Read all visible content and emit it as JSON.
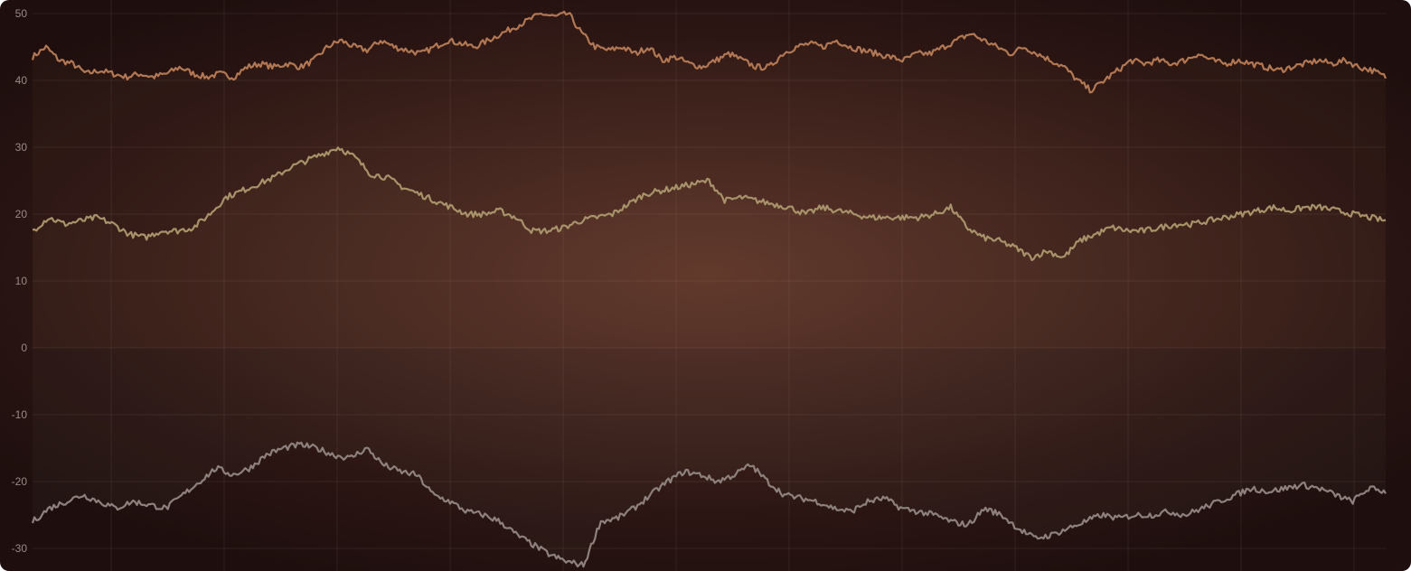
{
  "chart_data": {
    "type": "line",
    "ylim": [
      -33,
      50
    ],
    "y_ticks": [
      "50",
      "40",
      "30",
      "20",
      "10",
      "0",
      "-10",
      "-20",
      "-30"
    ],
    "grid": true,
    "x_gridlines": 12,
    "series": [
      {
        "color": "#b27753",
        "values": [
          43.5,
          45,
          43,
          42.5,
          41,
          41.5,
          41,
          40.5,
          41,
          40.5,
          41,
          42,
          41,
          40.5,
          41,
          40.5,
          42,
          42.5,
          42,
          42.5,
          42,
          43,
          45,
          46,
          45,
          44.5,
          46,
          45,
          44.5,
          44,
          45,
          46,
          45.5,
          45,
          46,
          47,
          48,
          49,
          50,
          49.5,
          50,
          47,
          45,
          44.5,
          45,
          44,
          45,
          43,
          43.5,
          42.5,
          42,
          43,
          44,
          43,
          42,
          42,
          44,
          45,
          45.5,
          45,
          46,
          45,
          44.5,
          44,
          43.5,
          43,
          44,
          44,
          45,
          46,
          47,
          46,
          45,
          44,
          45,
          44,
          43,
          42,
          40,
          38.5,
          40,
          41.5,
          43,
          42.5,
          43,
          42.5,
          43,
          44,
          43,
          42.5,
          43,
          42.5,
          42,
          41.5,
          42,
          42.5,
          43,
          42.5,
          43,
          42,
          41.5,
          40.5
        ]
      },
      {
        "color": "#a8926a",
        "values": [
          17.5,
          19.5,
          18.5,
          19,
          19.5,
          18.5,
          17,
          16.5,
          17.5,
          17.5,
          18,
          20,
          22.5,
          23.5,
          24.5,
          25.5,
          27,
          28,
          29,
          30,
          28.5,
          26,
          25.5,
          24,
          23,
          22,
          21,
          20,
          20,
          20.5,
          19.5,
          17.5,
          17.5,
          18,
          19,
          19.5,
          20,
          21.5,
          23,
          23.5,
          24,
          24.5,
          25,
          22,
          22.5,
          22,
          21.5,
          21,
          20,
          21,
          20.5,
          20,
          19.5,
          19.5,
          19.5,
          19.5,
          20,
          21,
          18,
          16.5,
          16,
          15,
          13.5,
          14.5,
          13.5,
          16,
          17,
          18,
          17.5,
          17.5,
          18,
          18.5,
          18.5,
          19,
          19.5,
          20,
          20.5,
          21,
          20.5,
          21,
          21,
          20.5,
          20,
          19.5,
          19
        ]
      },
      {
        "color": "#8e807c",
        "values": [
          -26,
          -24,
          -23,
          -22,
          -23,
          -24,
          -23,
          -23.5,
          -24,
          -22,
          -20,
          -18,
          -19,
          -18,
          -16,
          -15,
          -14.5,
          -15,
          -16,
          -16.5,
          -15,
          -17.5,
          -18.5,
          -19,
          -22,
          -23,
          -24.5,
          -25,
          -26,
          -28,
          -29.5,
          -31,
          -32,
          -32.5,
          -26,
          -25.5,
          -24,
          -22,
          -20,
          -18.5,
          -19,
          -20,
          -19,
          -17.5,
          -20,
          -22,
          -22.5,
          -23,
          -24,
          -24.5,
          -23,
          -22.5,
          -24,
          -24.5,
          -25,
          -26,
          -26.5,
          -24,
          -25,
          -27,
          -28.5,
          -28,
          -27,
          -26,
          -25,
          -25.5,
          -25,
          -25,
          -24.5,
          -25,
          -24,
          -23,
          -22,
          -21,
          -21.5,
          -21,
          -20.5,
          -21,
          -22,
          -23,
          -21,
          -21.5
        ]
      }
    ]
  }
}
